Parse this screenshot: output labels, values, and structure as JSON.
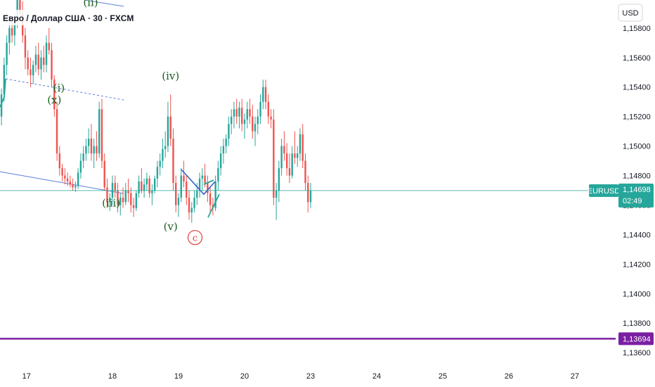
{
  "header": {
    "title": "Евро / Доллар США · 30 · FXCM",
    "currency": "USD"
  },
  "chart_data": {
    "type": "candlestick",
    "symbol": "EURUSD",
    "y_ticks": [
      "1,15800",
      "1,15600",
      "1,15400",
      "1,15200",
      "1,15000",
      "1,14800",
      "1,14600",
      "1,14400",
      "1,14200",
      "1,14000",
      "1,13800",
      "1,13600"
    ],
    "y_tick_values": [
      1.158,
      1.156,
      1.154,
      1.152,
      1.15,
      1.148,
      1.146,
      1.144,
      1.142,
      1.14,
      1.138,
      1.136
    ],
    "ylim": [
      1.1351,
      1.1599
    ],
    "x_ticks": [
      "17",
      "18",
      "19",
      "20",
      "23",
      "24",
      "25",
      "26",
      "27"
    ],
    "x_tick_index": [
      -1.3,
      0,
      1,
      2,
      3,
      4,
      5,
      6,
      7
    ],
    "price_marker": {
      "label": "EURUSD",
      "value_text": "1,14698",
      "countdown": "02:49",
      "value": 1.14698
    },
    "level_marker": {
      "value_text": "1,13694",
      "value": 1.13694
    },
    "wave_labels": [
      {
        "text": "(x)",
        "day": -0.88,
        "value": 1.1529
      },
      {
        "text": "(i)",
        "day": -0.81,
        "value": 1.1537
      },
      {
        "text": "(iii)",
        "day": -0.02,
        "value": 1.1459
      },
      {
        "text": "(iv)",
        "day": 0.88,
        "value": 1.1545
      },
      {
        "text": "(v)",
        "day": 0.88,
        "value": 1.1443
      },
      {
        "text": "(ii)",
        "day": -0.33,
        "value": 1.1595
      }
    ],
    "circle_label": {
      "text": "c",
      "day": 1.25,
      "value": 1.1438
    },
    "ohlc": [
      [
        "-1.68",
        1.152,
        1.1539,
        1.1514,
        1.1535
      ],
      [
        "-1.64",
        1.1535,
        1.156,
        1.153,
        1.1555
      ],
      [
        "-1.60",
        1.1555,
        1.1575,
        1.1548,
        1.157
      ],
      [
        "-1.56",
        1.157,
        1.1585,
        1.1562,
        1.158
      ],
      [
        "-1.52",
        1.158,
        1.1588,
        1.157,
        1.1575
      ],
      [
        "-1.48",
        1.1575,
        1.159,
        1.1568,
        1.1585
      ],
      [
        "-1.44",
        1.1585,
        1.1605,
        1.158,
        1.16
      ],
      [
        "-1.40",
        1.16,
        1.161,
        1.1585,
        1.159
      ],
      [
        "-1.36",
        1.159,
        1.1598,
        1.157,
        1.1575
      ],
      [
        "-1.32",
        1.1575,
        1.158,
        1.1552,
        1.156
      ],
      [
        "-1.28",
        1.156,
        1.1565,
        1.1548,
        1.1552
      ],
      [
        "-1.24",
        1.1552,
        1.156,
        1.154,
        1.1548
      ],
      [
        "-1.20",
        1.1548,
        1.1558,
        1.1542,
        1.1555
      ],
      [
        "-1.16",
        1.1555,
        1.1568,
        1.155,
        1.1562
      ],
      [
        "-1.12",
        1.1562,
        1.157,
        1.1548,
        1.1552
      ],
      [
        "-1.08",
        1.1552,
        1.1565,
        1.1545,
        1.156
      ],
      [
        "-1.04",
        1.156,
        1.1568,
        1.155,
        1.1555
      ],
      [
        "-1.00",
        1.1555,
        1.1575,
        1.155,
        1.157
      ],
      [
        "-0.96",
        1.157,
        1.158,
        1.1562,
        1.1565
      ],
      [
        "-0.92",
        1.1565,
        1.157,
        1.154,
        1.1545
      ],
      [
        "-0.88",
        1.1545,
        1.1548,
        1.152,
        1.1525
      ],
      [
        "-0.84",
        1.1525,
        1.153,
        1.149,
        1.1495
      ],
      [
        "-0.80",
        1.1495,
        1.15,
        1.148,
        1.1485
      ],
      [
        "-0.76",
        1.1485,
        1.1488,
        1.1476,
        1.148
      ],
      [
        "-0.72",
        1.148,
        1.1485,
        1.1474,
        1.1478
      ],
      [
        "-0.68",
        1.1478,
        1.1482,
        1.1473,
        1.1476
      ],
      [
        "-0.64",
        1.1476,
        1.148,
        1.1472,
        1.1474
      ],
      [
        "-0.60",
        1.1474,
        1.1478,
        1.147,
        1.1472
      ],
      [
        "-0.56",
        1.1472,
        1.1476,
        1.1469,
        1.1473
      ],
      [
        "-0.52",
        1.1473,
        1.1485,
        1.1471,
        1.1482
      ],
      [
        "-0.48",
        1.1482,
        1.1495,
        1.1478,
        1.149
      ],
      [
        "-0.44",
        1.149,
        1.15,
        1.1485,
        1.1495
      ],
      [
        "-0.40",
        1.1495,
        1.1505,
        1.149,
        1.15
      ],
      [
        "-0.36",
        1.15,
        1.1512,
        1.1495,
        1.1505
      ],
      [
        "-0.32",
        1.1505,
        1.1515,
        1.149,
        1.1495
      ],
      [
        "-0.28",
        1.1495,
        1.1505,
        1.1485,
        1.15
      ],
      [
        "-0.24",
        1.15,
        1.151,
        1.149,
        1.1495
      ],
      [
        "-0.20",
        1.1495,
        1.153,
        1.1492,
        1.1525
      ],
      [
        "-0.16",
        1.1525,
        1.1532,
        1.1485,
        1.149
      ],
      [
        "-0.12",
        1.149,
        1.1495,
        1.147,
        1.1472
      ],
      [
        "-0.08",
        1.1472,
        1.1478,
        1.1458,
        1.1462
      ],
      [
        "-0.04",
        1.1462,
        1.1468,
        1.1456,
        1.1465
      ],
      [
        "0.00",
        1.1465,
        1.148,
        1.146,
        1.1475
      ],
      [
        "0.04",
        1.1475,
        1.148,
        1.1465,
        1.147
      ],
      [
        "0.08",
        1.147,
        1.1475,
        1.1455,
        1.146
      ],
      [
        "0.12",
        1.146,
        1.1468,
        1.1453,
        1.1465
      ],
      [
        "0.16",
        1.1465,
        1.1472,
        1.1458,
        1.1462
      ],
      [
        "0.20",
        1.1462,
        1.1475,
        1.146,
        1.147
      ],
      [
        "0.24",
        1.147,
        1.1478,
        1.1462,
        1.1468
      ],
      [
        "0.28",
        1.1468,
        1.1472,
        1.1455,
        1.146
      ],
      [
        "0.32",
        1.146,
        1.1465,
        1.1452,
        1.1458
      ],
      [
        "0.36",
        1.1458,
        1.147,
        1.1456,
        1.1468
      ],
      [
        "0.40",
        1.1468,
        1.148,
        1.1465,
        1.1476
      ],
      [
        "0.44",
        1.1476,
        1.1485,
        1.1468,
        1.147
      ],
      [
        "0.48",
        1.147,
        1.1478,
        1.1465,
        1.1474
      ],
      [
        "0.52",
        1.1474,
        1.1482,
        1.147,
        1.1478
      ],
      [
        "0.56",
        1.1478,
        1.148,
        1.1465,
        1.1468
      ],
      [
        "0.60",
        1.1468,
        1.1474,
        1.146,
        1.147
      ],
      [
        "0.64",
        1.147,
        1.148,
        1.1468,
        1.1478
      ],
      [
        "0.68",
        1.1478,
        1.149,
        1.1472,
        1.1486
      ],
      [
        "0.72",
        1.1486,
        1.1495,
        1.148,
        1.149
      ],
      [
        "0.76",
        1.149,
        1.1505,
        1.1485,
        1.1498
      ],
      [
        "0.80",
        1.1498,
        1.151,
        1.1492,
        1.15
      ],
      [
        "0.84",
        1.15,
        1.153,
        1.1496,
        1.152
      ],
      [
        "0.88",
        1.152,
        1.1535,
        1.15,
        1.1505
      ],
      [
        "0.92",
        1.1505,
        1.1512,
        1.147,
        1.1475
      ],
      [
        "0.96",
        1.1475,
        1.148,
        1.1455,
        1.146
      ],
      [
        "1.00",
        1.146,
        1.1468,
        1.1452,
        1.1465
      ],
      [
        "1.04",
        1.1465,
        1.1485,
        1.1462,
        1.148
      ],
      [
        "1.08",
        1.148,
        1.149,
        1.1472,
        1.1476
      ],
      [
        "1.12",
        1.1476,
        1.148,
        1.146,
        1.1465
      ],
      [
        "1.16",
        1.1465,
        1.147,
        1.145,
        1.1455
      ],
      [
        "1.20",
        1.1455,
        1.1462,
        1.1448,
        1.1458
      ],
      [
        "1.24",
        1.1458,
        1.147,
        1.1455,
        1.1465
      ],
      [
        "1.28",
        1.1465,
        1.1475,
        1.146,
        1.147
      ],
      [
        "1.32",
        1.147,
        1.1482,
        1.1465,
        1.1478
      ],
      [
        "1.36",
        1.1478,
        1.1485,
        1.147,
        1.148
      ],
      [
        "1.40",
        1.148,
        1.1488,
        1.1472,
        1.1475
      ],
      [
        "1.44",
        1.1475,
        1.148,
        1.1462,
        1.1468
      ],
      [
        "1.48",
        1.1468,
        1.1472,
        1.1455,
        1.146
      ],
      [
        "1.52",
        1.146,
        1.1465,
        1.1453,
        1.1458
      ],
      [
        "1.56",
        1.1458,
        1.148,
        1.1456,
        1.1476
      ],
      [
        "1.60",
        1.1476,
        1.149,
        1.147,
        1.1485
      ],
      [
        "1.64",
        1.1485,
        1.15,
        1.148,
        1.1495
      ],
      [
        "1.68",
        1.1495,
        1.1505,
        1.1488,
        1.15
      ],
      [
        "1.72",
        1.15,
        1.1508,
        1.1495,
        1.1505
      ],
      [
        "1.76",
        1.1505,
        1.152,
        1.15,
        1.1515
      ],
      [
        "1.80",
        1.1515,
        1.1525,
        1.1508,
        1.152
      ],
      [
        "1.84",
        1.152,
        1.153,
        1.1512,
        1.1525
      ],
      [
        "1.88",
        1.1525,
        1.1532,
        1.1515,
        1.152
      ],
      [
        "1.92",
        1.152,
        1.153,
        1.1512,
        1.1526
      ],
      [
        "1.96",
        1.1526,
        1.1532,
        1.151,
        1.1515
      ],
      [
        "2.00",
        1.1515,
        1.1522,
        1.1505,
        1.1518
      ],
      [
        "2.04",
        1.1518,
        1.153,
        1.1512,
        1.1525
      ],
      [
        "2.08",
        1.1525,
        1.1532,
        1.1515,
        1.152
      ],
      [
        "2.12",
        1.152,
        1.1528,
        1.1505,
        1.151
      ],
      [
        "2.16",
        1.151,
        1.152,
        1.15,
        1.1515
      ],
      [
        "2.20",
        1.1515,
        1.1525,
        1.1508,
        1.152
      ],
      [
        "2.24",
        1.152,
        1.1535,
        1.1515,
        1.153
      ],
      [
        "2.28",
        1.153,
        1.1545,
        1.1525,
        1.154
      ],
      [
        "2.32",
        1.154,
        1.1545,
        1.1525,
        1.153
      ],
      [
        "2.36",
        1.153,
        1.1535,
        1.1515,
        1.152
      ],
      [
        "2.40",
        1.152,
        1.1525,
        1.1512,
        1.1518
      ],
      [
        "2.44",
        1.1518,
        1.1525,
        1.146,
        1.1465
      ],
      [
        "2.48",
        1.1465,
        1.1475,
        1.145,
        1.147
      ],
      [
        "2.52",
        1.147,
        1.149,
        1.1462,
        1.1485
      ],
      [
        "2.56",
        1.1485,
        1.1505,
        1.148,
        1.15
      ],
      [
        "2.60",
        1.15,
        1.151,
        1.149,
        1.1495
      ],
      [
        "2.64",
        1.1495,
        1.1502,
        1.148,
        1.1485
      ],
      [
        "2.68",
        1.1485,
        1.1495,
        1.1475,
        1.148
      ],
      [
        "2.72",
        1.148,
        1.15,
        1.1478,
        1.1495
      ],
      [
        "2.76",
        1.1495,
        1.151,
        1.1488,
        1.1492
      ],
      [
        "2.80",
        1.1492,
        1.15,
        1.1486,
        1.1495
      ],
      [
        "2.84",
        1.1495,
        1.1512,
        1.149,
        1.1508
      ],
      [
        "2.88",
        1.1508,
        1.1515,
        1.1485,
        1.149
      ],
      [
        "2.92",
        1.149,
        1.1495,
        1.147,
        1.1475
      ],
      [
        "2.96",
        1.1475,
        1.148,
        1.1455,
        1.1462
      ],
      [
        "3.00",
        1.1462,
        1.1475,
        1.1458,
        1.147
      ]
    ]
  }
}
